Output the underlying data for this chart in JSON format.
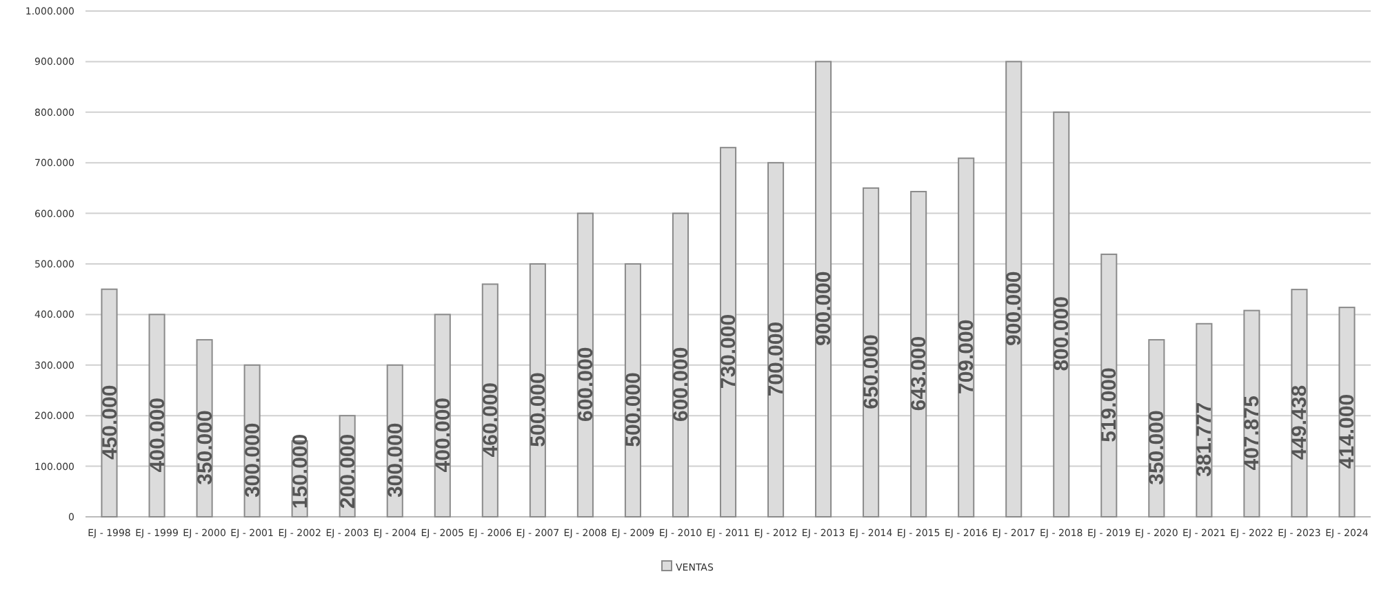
{
  "chart_data": {
    "type": "bar",
    "categories": [
      "EJ - 1998",
      "EJ - 1999",
      "EJ - 2000",
      "EJ - 2001",
      "EJ - 2002",
      "EJ - 2003",
      "EJ - 2004",
      "EJ - 2005",
      "EJ - 2006",
      "EJ - 2007",
      "EJ - 2008",
      "EJ - 2009",
      "EJ - 2010",
      "EJ - 2011",
      "EJ - 2012",
      "EJ - 2013",
      "EJ - 2014",
      "EJ - 2015",
      "EJ - 2016",
      "EJ - 2017",
      "EJ - 2018",
      "EJ - 2019",
      "EJ - 2020",
      "EJ - 2021",
      "EJ - 2022",
      "EJ - 2023",
      "EJ - 2024"
    ],
    "series": [
      {
        "name": "VENTAS",
        "color": "#dcdcdc",
        "values": [
          450000,
          400000,
          350000,
          300000,
          150000,
          200000,
          300000,
          400000,
          460000,
          500000,
          600000,
          500000,
          600000,
          730000,
          700000,
          900000,
          650000,
          643000,
          709000,
          900000,
          800000,
          519000,
          350000,
          381777,
          407875,
          449438,
          414000
        ],
        "value_labels": [
          "450.000",
          "400.000",
          "350.000",
          "300.000",
          "150.000",
          "200.000",
          "300.000",
          "400.000",
          "460.000",
          "500.000",
          "600.000",
          "500.000",
          "600.000",
          "730.000",
          "700.000",
          "900.000",
          "650.000",
          "643.000",
          "709.000",
          "900.000",
          "800.000",
          "519.000",
          "350.000",
          "381.777",
          "407.875",
          "449.438",
          "414.000"
        ]
      }
    ],
    "ylim": [
      0,
      1000000
    ],
    "yticks": [
      0,
      {
        "value": 100000,
        "label": "100.000"
      },
      {
        "value": 200000,
        "label": "200.000"
      },
      {
        "value": 300000,
        "label": "300.000"
      },
      {
        "value": 400000,
        "label": "400.000"
      },
      {
        "value": 500000,
        "label": "500.000"
      },
      {
        "value": 600000,
        "label": "600.000"
      },
      {
        "value": 700000,
        "label": "700.000"
      },
      {
        "value": 800000,
        "label": "800.000"
      },
      {
        "value": 900000,
        "label": "900.000"
      },
      {
        "value": 1000000,
        "label": "1.000.000"
      }
    ],
    "grid": "y",
    "legend": "bottom"
  }
}
